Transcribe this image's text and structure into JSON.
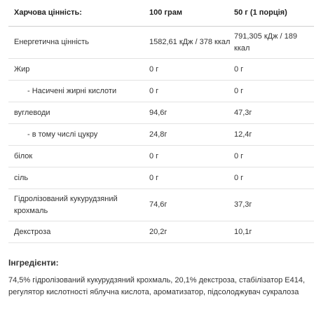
{
  "nutrition": {
    "header": {
      "col1": "Харчова цінність:",
      "col2": "100 грам",
      "col3": "50 г (1 порція)"
    },
    "rows": [
      {
        "name": "Енергетична цінність",
        "per100": "1582,61 кДж / 378 ккал",
        "perServing": "791,305 кДж / 189 ккал",
        "sub": false
      },
      {
        "name": "Жир",
        "per100": "0 г",
        "perServing": "0 г",
        "sub": false
      },
      {
        "name": "- Насичені жирні кислоти",
        "per100": "0 г",
        "perServing": "0 г",
        "sub": true
      },
      {
        "name": "вуглеводи",
        "per100": "94,6г",
        "perServing": "47,3г",
        "sub": false
      },
      {
        "name": "- в тому числі цукру",
        "per100": "24,8г",
        "perServing": "12,4г",
        "sub": true
      },
      {
        "name": "білок",
        "per100": "0 г",
        "perServing": "0 г",
        "sub": false
      },
      {
        "name": "сіль",
        "per100": "0 г",
        "perServing": "0 г",
        "sub": false
      },
      {
        "name": "Гідролізований кукурудзяний крохмаль",
        "per100": "74,6г",
        "perServing": "37,3г",
        "sub": false
      },
      {
        "name": "Декстроза",
        "per100": "20,2г",
        "perServing": "10,1г",
        "sub": false
      }
    ]
  },
  "ingredients": {
    "title": "Інгредієнти:",
    "text": "74,5% гідролізований кукурудзяний крохмаль, 20,1% декстроза, стабілізатор E414, регулятор кислотності яблучна кислота, ароматизатор, підсолоджувач сукралоза"
  }
}
